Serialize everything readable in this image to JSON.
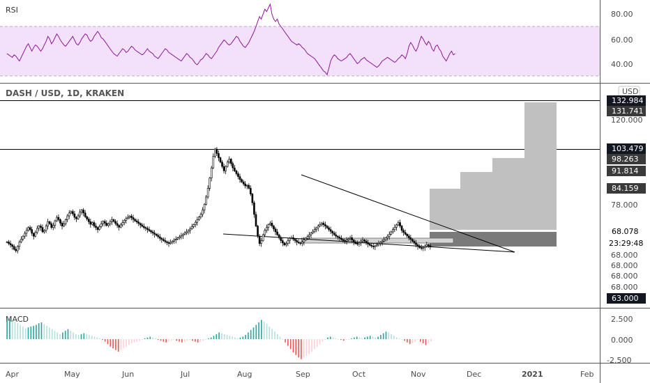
{
  "colors": {
    "up": "#000000",
    "down": "#000000",
    "rsi_line": "#8e1599",
    "rsi_band": "#f3e1fb",
    "macd_pos_strong": "#26a69a",
    "macd_pos_weak": "#b2dfdb",
    "macd_neg_strong": "#ef5350",
    "macd_neg_weak": "#ffcdd2",
    "target_box": "#c0c0c0",
    "stop_box": "#7a7a7a",
    "tag_bg": "#131722"
  },
  "rsi_panel": {
    "label": "RSI",
    "ticks": [
      "80.00",
      "60.00",
      "40.00"
    ]
  },
  "price_panel": {
    "symbol_title": "DASH / USD, 1D, KRAKEN",
    "currency": "USD",
    "ticks": [
      "120.000",
      "78.000",
      "68.000",
      "68.000",
      "68.000",
      "68.000"
    ],
    "tags": [
      "132.984",
      "131.741",
      "103.479",
      "98.263",
      "91.814",
      "84.159",
      "68.078",
      "23:29:48",
      "63.000"
    ]
  },
  "macd_panel": {
    "label": "MACD",
    "ticks": [
      "2.500",
      "0.000",
      "-2.500"
    ]
  },
  "time_axis": {
    "labels": [
      "Apr",
      "May",
      "Jun",
      "Jul",
      "Aug",
      "Sep",
      "Oct",
      "Nov",
      "Dec",
      "2021",
      "Feb"
    ]
  },
  "chart_data": [
    {
      "type": "line",
      "title": "RSI",
      "ylim": [
        26,
        90
      ],
      "bands": [
        30,
        70
      ],
      "x_start": "2020-03-26",
      "x_step_days": 1,
      "values": [
        48,
        47,
        46,
        45,
        47,
        46,
        44,
        42,
        45,
        48,
        51,
        54,
        56,
        53,
        50,
        53,
        55,
        54,
        52,
        50,
        52,
        55,
        58,
        62,
        60,
        56,
        58,
        61,
        64,
        62,
        59,
        57,
        55,
        54,
        56,
        58,
        60,
        62,
        59,
        56,
        55,
        57,
        60,
        62,
        64,
        63,
        60,
        58,
        59,
        62,
        64,
        66,
        64,
        61,
        60,
        58,
        56,
        54,
        52,
        50,
        48,
        47,
        46,
        48,
        50,
        52,
        51,
        49,
        50,
        52,
        54,
        53,
        51,
        50,
        49,
        48,
        47,
        48,
        50,
        52,
        50,
        49,
        48,
        46,
        45,
        44,
        46,
        48,
        50,
        52,
        51,
        49,
        48,
        47,
        46,
        45,
        44,
        43,
        42,
        44,
        46,
        48,
        47,
        45,
        44,
        42,
        40,
        39,
        41,
        43,
        44,
        46,
        48,
        47,
        45,
        44,
        46,
        48,
        50,
        53,
        55,
        57,
        59,
        58,
        56,
        55,
        56,
        58,
        60,
        62,
        61,
        58,
        56,
        54,
        53,
        55,
        57,
        60,
        63,
        66,
        70,
        74,
        78,
        76,
        80,
        84,
        82,
        85,
        88,
        80,
        76,
        74,
        76,
        72,
        70,
        68,
        66,
        64,
        62,
        60,
        58,
        57,
        56,
        55,
        56,
        55,
        53,
        52,
        50,
        48,
        47,
        46,
        45,
        44,
        42,
        40,
        38,
        36,
        34,
        33,
        31,
        36,
        42,
        45,
        47,
        46,
        44,
        43,
        42,
        43,
        44,
        45,
        47,
        48,
        46,
        44,
        42,
        40,
        41,
        43,
        44,
        45,
        43,
        42,
        41,
        40,
        39,
        38,
        37,
        38,
        40,
        42,
        43,
        44,
        45,
        44,
        43,
        42,
        41,
        42,
        44,
        45,
        47,
        46,
        44,
        48,
        54,
        57,
        55,
        52,
        50,
        53,
        58,
        62,
        60,
        57,
        55,
        58,
        56,
        52,
        50,
        54,
        55,
        52,
        50,
        46,
        44,
        42,
        45,
        48,
        50,
        47,
        48
      ]
    },
    {
      "type": "candlestick",
      "title": "DASH / USD, 1D, KRAKEN",
      "x_start": "2020-03-26",
      "x_step_days": 1,
      "closes": [
        70.5,
        70.0,
        69.5,
        69.0,
        68.0,
        67.5,
        69.0,
        70.5,
        71.5,
        72.5,
        73.5,
        74.5,
        75.5,
        74.8,
        73.5,
        72.5,
        73.8,
        75.2,
        76.0,
        75.5,
        74.0,
        74.5,
        76.0,
        77.5,
        76.8,
        75.5,
        76.2,
        77.8,
        79.0,
        78.2,
        77.0,
        76.0,
        76.8,
        78.2,
        79.5,
        80.5,
        81.0,
        80.2,
        79.0,
        78.5,
        79.5,
        80.8,
        81.5,
        80.5,
        79.2,
        78.4,
        77.5,
        76.6,
        77.2,
        76.0,
        75.5,
        74.8,
        75.8,
        76.8,
        77.6,
        77.0,
        76.2,
        76.8,
        77.5,
        78.2,
        77.6,
        76.9,
        76.2,
        75.6,
        76.4,
        77.2,
        78.0,
        78.6,
        79.0,
        79.4,
        78.9,
        78.3,
        77.8,
        77.4,
        76.9,
        76.4,
        75.9,
        75.5,
        75.2,
        74.8,
        74.4,
        74.0,
        73.6,
        73.2,
        72.8,
        72.3,
        71.8,
        71.4,
        71.0,
        70.6,
        70.3,
        70.0,
        70.4,
        70.8,
        71.2,
        71.5,
        71.9,
        72.3,
        72.7,
        73.2,
        73.6,
        74.0,
        74.5,
        75.1,
        75.8,
        76.5,
        77.3,
        78.2,
        79.1,
        80.0,
        81.5,
        83.5,
        86.0,
        89.0,
        92.5,
        96.0,
        100.0,
        102.5,
        101.0,
        99.5,
        98.0,
        96.5,
        95.0,
        96.5,
        98.0,
        99.0,
        97.5,
        96.0,
        95.0,
        94.0,
        93.0,
        92.0,
        91.2,
        90.5,
        89.8,
        90.0,
        89.0,
        87.0,
        84.0,
        80.0,
        76.0,
        72.5,
        70.0,
        71.0,
        73.0,
        74.5,
        75.5,
        76.5,
        77.0,
        76.0,
        75.0,
        74.0,
        73.0,
        72.0,
        71.0,
        70.2,
        69.5,
        70.0,
        71.0,
        71.8,
        72.0,
        71.5,
        71.0,
        70.5,
        70.2,
        70.0,
        70.5,
        71.2,
        71.8,
        72.4,
        73.0,
        73.6,
        74.2,
        74.8,
        75.4,
        76.0,
        76.5,
        77.0,
        76.5,
        76.0,
        75.4,
        74.8,
        74.2,
        73.6,
        73.0,
        72.5,
        72.2,
        71.8,
        71.4,
        71.0,
        70.8,
        71.2,
        71.6,
        72.0,
        71.2,
        70.5,
        70.0,
        69.8,
        70.3,
        70.8,
        71.2,
        70.8,
        70.3,
        69.8,
        69.4,
        69.1,
        68.9,
        69.2,
        69.6,
        70.0,
        70.4,
        70.8,
        71.3,
        71.9,
        72.5,
        73.2,
        74.0,
        74.8,
        75.6,
        76.4,
        77.2,
        76.0,
        74.5,
        73.8,
        73.2,
        72.6,
        72.0,
        71.4,
        70.8,
        70.2,
        69.6,
        69.0,
        68.6,
        68.3,
        68.6,
        69.0,
        69.6,
        69.2,
        68.8
      ]
    },
    {
      "type": "bar",
      "title": "MACD",
      "ylim": [
        -3.2,
        3.2
      ],
      "x_start": "2020-03-26",
      "x_step_days": 1,
      "values": [
        2.4,
        2.5,
        2.3,
        2.1,
        1.9,
        1.7,
        1.5,
        1.3,
        1.4,
        1.5,
        1.6,
        1.7,
        1.9,
        2.0,
        1.8,
        1.6,
        1.4,
        1.2,
        1.0,
        0.8,
        0.6,
        0.8,
        1.0,
        1.2,
        1.0,
        0.8,
        0.6,
        0.5,
        0.6,
        0.7,
        0.6,
        0.5,
        0.4,
        0.3,
        0.2,
        0.1,
        -0.1,
        -0.3,
        -0.6,
        -0.9,
        -1.1,
        -1.3,
        -1.5,
        -1.3,
        -1.1,
        -0.9,
        -0.7,
        -0.5,
        -0.4,
        -0.3,
        -0.2,
        -0.1,
        0.1,
        0.2,
        0.3,
        0.2,
        0.1,
        -0.1,
        -0.2,
        -0.3,
        -0.4,
        -0.3,
        -0.2,
        -0.1,
        -0.2,
        -0.3,
        -0.4,
        -0.3,
        -0.2,
        -0.1,
        -0.2,
        -0.3,
        -0.4,
        -0.3,
        -0.2,
        -0.1,
        0.1,
        0.2,
        0.4,
        0.6,
        0.8,
        0.7,
        0.6,
        0.5,
        0.4,
        0.3,
        0.2,
        0.1,
        0.2,
        0.3,
        0.5,
        0.8,
        1.1,
        1.4,
        1.7,
        2.0,
        2.3,
        2.1,
        1.8,
        1.5,
        1.2,
        0.9,
        0.6,
        0.3,
        0.0,
        -0.4,
        -0.8,
        -1.2,
        -1.6,
        -1.9,
        -2.2,
        -2.4,
        -2.2,
        -2.0,
        -1.8,
        -1.5,
        -1.2,
        -0.9,
        -0.6,
        -0.3,
        0.0,
        0.2,
        0.3,
        0.2,
        0.1,
        0.0,
        -0.1,
        -0.2,
        -0.1,
        0.0,
        0.1,
        0.2,
        0.3,
        0.2,
        0.1,
        0.2,
        0.3,
        0.4,
        0.3,
        0.2,
        0.3,
        0.5,
        0.7,
        0.9,
        0.8,
        0.6,
        0.4,
        0.2,
        0.1,
        0.0,
        -0.2,
        -0.4,
        -0.6,
        -0.5,
        -0.3,
        -0.1,
        -0.3,
        -0.5,
        -0.7,
        -0.5,
        -0.3
      ]
    }
  ]
}
